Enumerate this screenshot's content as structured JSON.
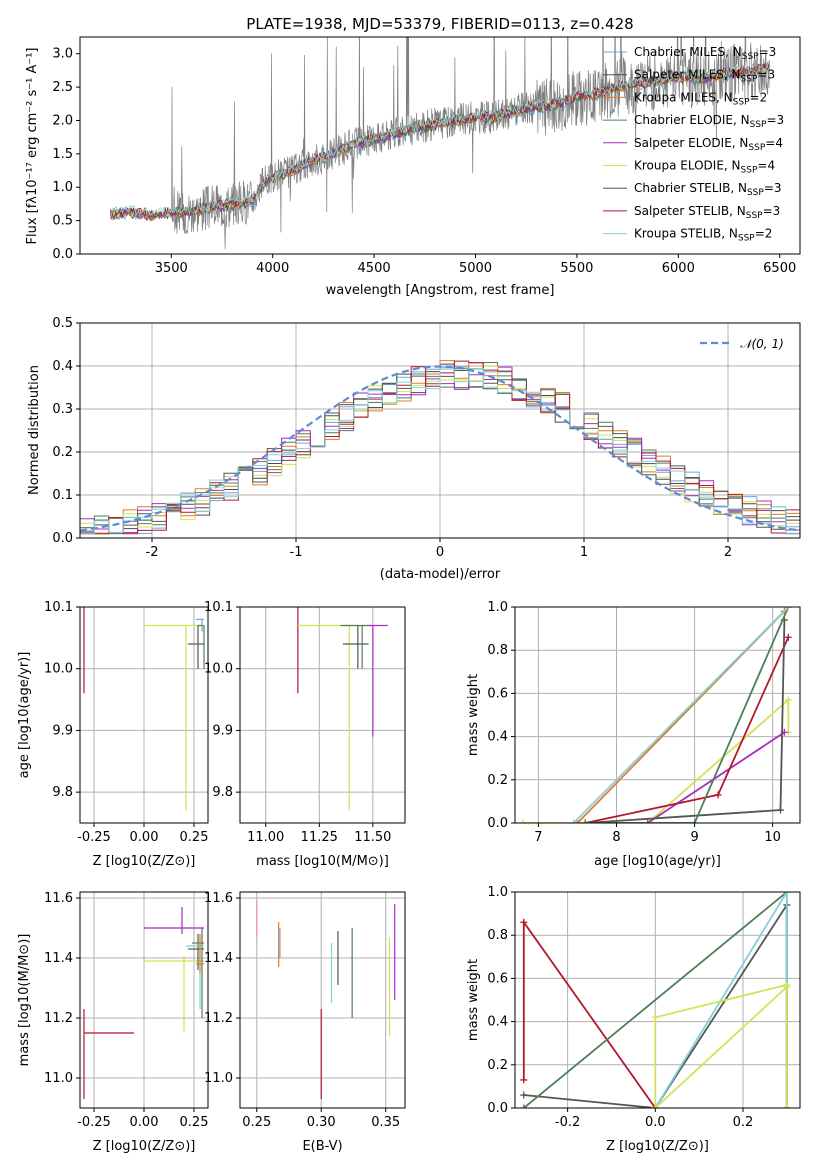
{
  "figure": {
    "title": "PLATE=1938, MJD=53379, FIBERID=0113, z=0.428"
  },
  "colors": {
    "Chabrier MILES": "#6fa8dc",
    "Salpeter MILES": "#4a4a4a",
    "Kroupa MILES": "#e07b2a",
    "Chabrier ELODIE": "#4f7f5a",
    "Salpeter ELODIE": "#a52cc4",
    "Kroupa ELODIE": "#d4e157",
    "Chabrier STELIB": "#555555",
    "Salpeter STELIB": "#b2182b",
    "Kroupa STELIB": "#7fd3d8",
    "data": "#7f7f7f",
    "normal": "#5b8bd6",
    "grid": "#b0b0b0"
  },
  "chart_data": [
    {
      "id": "spectrum",
      "type": "line",
      "xlabel": "wavelength [Angstrom, rest frame]",
      "ylabel": "Flux [f_λ 10^-17 erg cm^-2 s^-1 A^-1]",
      "xlim": [
        3050,
        6600
      ],
      "ylim": [
        0,
        3.25
      ],
      "xticks": [
        3500,
        4000,
        4500,
        5000,
        5500,
        6000,
        6500
      ],
      "yticks": [
        0.0,
        0.5,
        1.0,
        1.5,
        2.0,
        2.5,
        3.0
      ],
      "grid": false,
      "legend_position": "top-right",
      "legend": [
        "Chabrier MILES, N_SSP=3",
        "Salpeter MILES, N_SSP=3",
        "Kroupa MILES, N_SSP=2",
        "Chabrier ELODIE, N_SSP=3",
        "Salpeter ELODIE, N_SSP=4",
        "Kroupa ELODIE, N_SSP=4",
        "Chabrier STELIB, N_SSP=3",
        "Salpeter STELIB, N_SSP=3",
        "Kroupa STELIB, N_SSP=2"
      ],
      "continuum_x": [
        3200,
        3300,
        3400,
        3500,
        3600,
        3700,
        3800,
        3900,
        3950,
        4000,
        4100,
        4200,
        4300,
        4400,
        4500,
        4600,
        4700,
        4800,
        4900,
        5000,
        5100,
        5200,
        5300,
        5400,
        5500,
        5600,
        5700,
        5800,
        5900,
        6000,
        6100,
        6200,
        6300,
        6400,
        6450
      ],
      "continuum_y": [
        0.6,
        0.63,
        0.58,
        0.62,
        0.64,
        0.7,
        0.75,
        0.8,
        1.05,
        1.15,
        1.25,
        1.4,
        1.5,
        1.65,
        1.72,
        1.8,
        1.88,
        1.95,
        2.0,
        2.05,
        2.05,
        2.15,
        2.2,
        2.25,
        2.35,
        2.4,
        2.5,
        2.55,
        2.6,
        2.65,
        2.62,
        2.68,
        2.72,
        2.75,
        2.8
      ]
    },
    {
      "id": "residuals",
      "type": "histogram",
      "xlabel": "(data-model)/error",
      "ylabel": "Normed distribution",
      "xlim": [
        -2.5,
        2.5
      ],
      "ylim": [
        0,
        0.5
      ],
      "xticks": [
        -2,
        -1,
        0,
        1,
        2
      ],
      "yticks": [
        0.0,
        0.1,
        0.2,
        0.3,
        0.4,
        0.5
      ],
      "grid": true,
      "legend_position": "top-right",
      "legend": [
        "𝒩(0, 1)"
      ],
      "bin_width": 0.1
    },
    {
      "id": "age_vs_Z",
      "type": "scatter-errorbar",
      "xlabel": "Z [log10(Z/Z⊙)]",
      "ylabel": "age  [log10(age/yr)]",
      "xlim": [
        -0.32,
        0.32
      ],
      "ylim": [
        9.75,
        10.1
      ],
      "xticks": [
        -0.25,
        0.0,
        0.25
      ],
      "yticks": [
        9.8,
        9.9,
        10.0,
        10.1
      ],
      "grid": true,
      "points": [
        {
          "model": "Salpeter STELIB",
          "x": -0.3,
          "y": 10.12,
          "xerr": [
            0,
            0.25
          ],
          "yerr": [
            0.16,
            0.01
          ]
        },
        {
          "model": "Kroupa ELODIE",
          "x": 0.21,
          "y": 10.07,
          "xerr": [
            0.21,
            0.08
          ],
          "yerr": [
            0.3,
            0.0
          ]
        },
        {
          "model": "Chabrier STELIB",
          "x": 0.27,
          "y": 10.04,
          "xerr": [
            0.05,
            0.03
          ],
          "yerr": [
            0.04,
            0.03
          ]
        },
        {
          "model": "Chabrier ELODIE",
          "x": 0.3,
          "y": 10.07,
          "xerr": [
            0.03,
            0.0
          ],
          "yerr": [
            0.07,
            0.0
          ]
        },
        {
          "model": "Chabrier MILES",
          "x": 0.29,
          "y": 10.08,
          "xerr": [
            0.03,
            0.01
          ],
          "yerr": [
            0.02,
            0.0
          ]
        }
      ]
    },
    {
      "id": "age_vs_mass",
      "type": "scatter-errorbar",
      "xlabel": "mass [log10(M/M⊙)]",
      "ylabel": "",
      "xlim": [
        10.88,
        11.65
      ],
      "ylim": [
        9.75,
        10.1
      ],
      "xticks": [
        11.0,
        11.25,
        11.5
      ],
      "yticks": [
        9.8,
        9.9,
        10.0,
        10.1
      ],
      "grid": true,
      "points": [
        {
          "model": "Salpeter STELIB",
          "x": 11.15,
          "y": 10.12,
          "xerr": [
            0.2,
            0.08
          ],
          "yerr": [
            0.16,
            0.01
          ]
        },
        {
          "model": "Kroupa ELODIE",
          "x": 11.39,
          "y": 10.07,
          "xerr": [
            0.24,
            0.1
          ],
          "yerr": [
            0.3,
            0.0
          ]
        },
        {
          "model": "Chabrier STELIB",
          "x": 11.43,
          "y": 10.04,
          "xerr": [
            0.07,
            0.05
          ],
          "yerr": [
            0.04,
            0.03
          ]
        },
        {
          "model": "Chabrier ELODIE",
          "x": 11.45,
          "y": 10.07,
          "xerr": [
            0.1,
            0.04
          ],
          "yerr": [
            0.07,
            0.0
          ]
        },
        {
          "model": "Salpeter ELODIE",
          "x": 11.5,
          "y": 10.07,
          "xerr": [
            0.02,
            0.07
          ],
          "yerr": [
            0.18,
            0.0
          ]
        }
      ]
    },
    {
      "id": "weight_vs_age",
      "type": "line",
      "xlabel": "age  [log10(age/yr)]",
      "ylabel": "mass weight",
      "xlim": [
        6.7,
        10.35
      ],
      "ylim": [
        0,
        1.0
      ],
      "xticks": [
        7,
        8,
        9,
        10
      ],
      "yticks": [
        0.0,
        0.2,
        0.4,
        0.6,
        0.8,
        1.0
      ],
      "grid": true,
      "series": [
        {
          "model": "Kroupa ELODIE",
          "x": [
            6.8,
            8.4,
            10.2,
            10.2
          ],
          "y": [
            0.0,
            0.0,
            0.57,
            0.42
          ]
        },
        {
          "model": "Salpeter ELODIE",
          "x": [
            8.4,
            10.15
          ],
          "y": [
            0.0,
            0.42
          ]
        },
        {
          "model": "Salpeter STELIB",
          "x": [
            7.6,
            9.3,
            10.2
          ],
          "y": [
            0.0,
            0.13,
            0.86
          ]
        },
        {
          "model": "Chabrier STELIB",
          "x": [
            7.6,
            10.1,
            10.15
          ],
          "y": [
            0.0,
            0.06,
            0.94
          ]
        },
        {
          "model": "Chabrier ELODIE",
          "x": [
            7.6,
            9.0,
            10.2
          ],
          "y": [
            0.0,
            0.0,
            1.0
          ]
        },
        {
          "model": "Kroupa MILES",
          "x": [
            7.5,
            10.15
          ],
          "y": [
            0.0,
            0.98
          ]
        },
        {
          "model": "Kroupa STELIB",
          "x": [
            7.45,
            10.2
          ],
          "y": [
            0.0,
            1.0
          ]
        }
      ]
    },
    {
      "id": "mass_vs_Z",
      "type": "scatter-errorbar",
      "xlabel": "Z [log10(Z/Z⊙)]",
      "ylabel": "mass [log10(M/M⊙)]",
      "xlim": [
        -0.32,
        0.32
      ],
      "ylim": [
        10.9,
        11.62
      ],
      "xticks": [
        -0.25,
        0.0,
        0.25
      ],
      "yticks": [
        11.0,
        11.2,
        11.4,
        11.6
      ],
      "grid": true,
      "points": [
        {
          "model": "Salpeter STELIB",
          "x": -0.3,
          "y": 11.15,
          "xerr": [
            0,
            0.25
          ],
          "yerr": [
            0.22,
            0.08
          ]
        },
        {
          "model": "Salpeter ELODIE",
          "x": 0.19,
          "y": 11.5,
          "xerr": [
            0.19,
            0.11
          ],
          "yerr": [
            0.02,
            0.07
          ]
        },
        {
          "model": "Kroupa ELODIE",
          "x": 0.2,
          "y": 11.39,
          "xerr": [
            0.2,
            0.1
          ],
          "yerr": [
            0.24,
            0.02
          ]
        },
        {
          "model": "Chabrier STELIB",
          "x": 0.27,
          "y": 11.43,
          "xerr": [
            0.05,
            0.03
          ],
          "yerr": [
            0.07,
            0.05
          ]
        },
        {
          "model": "Chabrier ELODIE",
          "x": 0.29,
          "y": 11.45,
          "xerr": [
            0.05,
            0.01
          ],
          "yerr": [
            0.25,
            0.05
          ]
        },
        {
          "model": "Kroupa STELIB",
          "x": 0.28,
          "y": 11.44,
          "xerr": [
            0.07,
            0.02
          ],
          "yerr": [
            0.21,
            0.02
          ]
        },
        {
          "model": "Kroupa MILES",
          "x": 0.28,
          "y": 11.38,
          "xerr": [
            0.02,
            0.02
          ],
          "yerr": [
            0.03,
            0.1
          ]
        }
      ]
    },
    {
      "id": "mass_vs_EBV",
      "type": "scatter-errorbar",
      "xlabel": "E(B-V)",
      "ylabel": "",
      "xlim": [
        0.237,
        0.365
      ],
      "ylim": [
        10.9,
        11.62
      ],
      "xticks": [
        0.25,
        0.3,
        0.35
      ],
      "yticks": [
        11.0,
        11.2,
        11.4,
        11.6
      ],
      "grid": true,
      "points": [
        {
          "model": "Salpeter STELIB",
          "x": 0.3,
          "y": 11.15,
          "yerr": [
            0.22,
            0.08
          ]
        },
        {
          "model": "Kroupa MILES",
          "x": 0.267,
          "y": 11.43,
          "yerr": [
            0.06,
            0.09
          ]
        },
        {
          "model": "Chabrier MILES",
          "x": 0.268,
          "y": 11.45,
          "yerr": [
            0.05,
            0.05
          ]
        },
        {
          "model": "Kroupa STELIB",
          "x": 0.308,
          "y": 11.4,
          "yerr": [
            0.15,
            0.05
          ]
        },
        {
          "model": "Chabrier STELIB",
          "x": 0.313,
          "y": 11.4,
          "yerr": [
            0.09,
            0.09
          ]
        },
        {
          "model": "Chabrier ELODIE",
          "x": 0.324,
          "y": 11.35,
          "yerr": [
            0.15,
            0.15
          ]
        },
        {
          "model": "Kroupa ELODIE",
          "x": 0.353,
          "y": 11.3,
          "yerr": [
            0.16,
            0.17
          ]
        },
        {
          "model": "Salpeter ELODIE",
          "x": 0.357,
          "y": 11.42,
          "yerr": [
            0.16,
            0.16
          ]
        },
        {
          "model": "Kroupa ELODIE (pink)",
          "x": 0.25,
          "y": 11.55,
          "yerr": [
            0.08,
            0.04
          ]
        }
      ]
    },
    {
      "id": "weight_vs_Z",
      "type": "line",
      "xlabel": "Z [log10(Z/Z⊙)]",
      "ylabel": "mass weight",
      "xlim": [
        -0.32,
        0.33
      ],
      "ylim": [
        0,
        1.0
      ],
      "xticks": [
        -0.2,
        0.0,
        0.2
      ],
      "yticks": [
        0.0,
        0.2,
        0.4,
        0.6,
        0.8,
        1.0
      ],
      "grid": true,
      "series": [
        {
          "model": "Salpeter STELIB",
          "x": [
            -0.3,
            -0.3,
            0.0
          ],
          "y": [
            0.13,
            0.86,
            0.0
          ]
        },
        {
          "model": "Chabrier STELIB",
          "x": [
            -0.3,
            0.0,
            0.3,
            0.3
          ],
          "y": [
            0.06,
            0.0,
            0.94,
            0.0
          ]
        },
        {
          "model": "Chabrier ELODIE",
          "x": [
            -0.3,
            0.3,
            0.3
          ],
          "y": [
            0.0,
            1.0,
            0.0
          ]
        },
        {
          "model": "Kroupa STELIB",
          "x": [
            0.0,
            0.3,
            0.3
          ],
          "y": [
            0.0,
            1.0,
            0.0
          ]
        },
        {
          "model": "Kroupa ELODIE",
          "x": [
            0.0,
            0.0,
            0.3,
            0.3
          ],
          "y": [
            0.0,
            0.42,
            0.57,
            0.0
          ]
        },
        {
          "model": "Kroupa ELODIE line",
          "x": [
            0.0,
            0.3
          ],
          "y": [
            0.0,
            0.56
          ]
        }
      ]
    }
  ]
}
